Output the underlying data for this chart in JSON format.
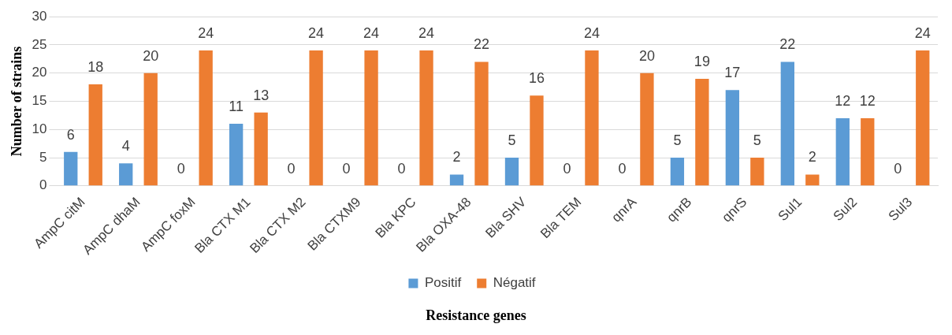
{
  "chart_data": {
    "type": "bar",
    "xlabel": "Resistance genes",
    "ylabel": "Number of strains",
    "categories": [
      "AmpC citM",
      "AmpC dhaM",
      "AmpC foxM",
      "Bla CTX M1",
      "Bla CTX M2",
      "Bla CTXM9",
      "Bla KPC",
      "Bla OXA-48",
      "Bla SHV",
      "Bla TEM",
      "qnrA",
      "qnrB",
      "qnrS",
      "Sul1",
      "Sul2",
      "Sul3"
    ],
    "series": [
      {
        "name": "Positif",
        "color": "#5b9bd5",
        "values": [
          6,
          4,
          0,
          11,
          0,
          0,
          0,
          2,
          5,
          0,
          0,
          5,
          17,
          22,
          12,
          0
        ]
      },
      {
        "name": "Négatif",
        "color": "#ed7d31",
        "values": [
          18,
          20,
          24,
          13,
          24,
          24,
          24,
          22,
          16,
          24,
          20,
          19,
          5,
          2,
          12,
          24
        ]
      }
    ],
    "ylim": [
      0,
      30
    ],
    "yticks": [
      0,
      5,
      10,
      15,
      20,
      25,
      30
    ],
    "grid": "y",
    "legend": "bottom",
    "data_labels": true
  }
}
